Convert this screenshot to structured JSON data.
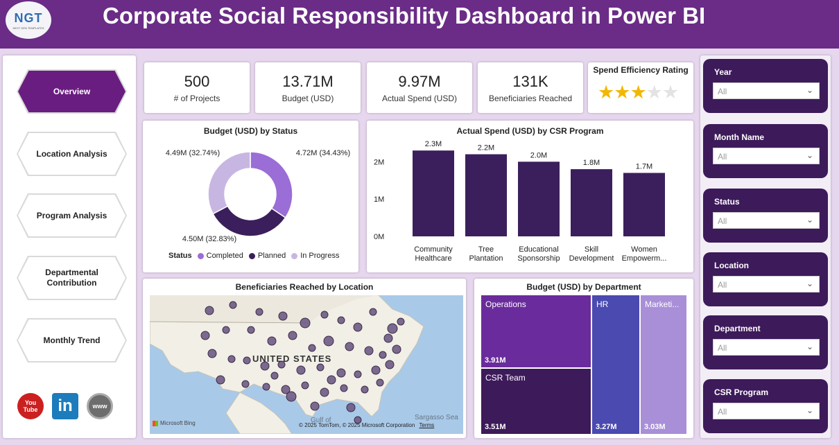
{
  "header": {
    "logo_text": "NGT",
    "logo_sub": "NEXT GEN TEMPLATES",
    "title": "Corporate Social Responsibility Dashboard in Power BI"
  },
  "nav": {
    "items": [
      {
        "label": "Overview",
        "active": true
      },
      {
        "label": "Location Analysis",
        "active": false
      },
      {
        "label": "Program Analysis",
        "active": false
      },
      {
        "label": "Departmental Contribution",
        "active": false
      },
      {
        "label": "Monthly Trend",
        "active": false
      }
    ],
    "social": [
      {
        "icon": "youtube-icon",
        "label": "You Tube",
        "color": "#cc1f1f"
      },
      {
        "icon": "linkedin-icon",
        "label": "in",
        "color": "#1c7cbc"
      },
      {
        "icon": "globe-icon",
        "label": "www",
        "color": "#6d6d6d"
      }
    ]
  },
  "kpis": [
    {
      "value": "500",
      "label": "# of Projects"
    },
    {
      "value": "13.71M",
      "label": "Budget (USD)"
    },
    {
      "value": "9.97M",
      "label": "Actual Spend (USD)"
    },
    {
      "value": "131K",
      "label": "Beneficiaries Reached"
    }
  ],
  "rating": {
    "label": "Spend Efficiency Rating",
    "stars": 3,
    "max": 5
  },
  "donut": {
    "title": "Budget (USD) by Status",
    "legend_title": "Status",
    "slices": [
      {
        "name": "Completed",
        "value": 4.72,
        "label": "4.72M (34.43%)",
        "color": "#9b6dd6"
      },
      {
        "name": "Planned",
        "value": 4.5,
        "label": "4.50M (32.83%)",
        "color": "#3b1f5c"
      },
      {
        "name": "In Progress",
        "value": 4.49,
        "label": "4.49M (32.74%)",
        "color": "#c8b6e2"
      }
    ]
  },
  "bar": {
    "title": "Actual Spend (USD) by CSR Program",
    "yticks": [
      "2M",
      "1M",
      "0M"
    ],
    "ymax": 2.6,
    "bars": [
      {
        "line1": "Community",
        "line2": "Healthcare",
        "value": 2.3,
        "label": "2.3M"
      },
      {
        "line1": "Tree",
        "line2": "Plantation",
        "value": 2.2,
        "label": "2.2M"
      },
      {
        "line1": "Educational",
        "line2": "Sponsorship",
        "value": 2.0,
        "label": "2.0M"
      },
      {
        "line1": "Skill",
        "line2": "Development",
        "value": 1.8,
        "label": "1.8M"
      },
      {
        "line1": "Women",
        "line2": "Empowerm...",
        "value": 1.7,
        "label": "1.7M"
      }
    ],
    "color": "#3b1f5c"
  },
  "map": {
    "title": "Beneficiaries Reached by Location",
    "country_label": "UNITED STATES",
    "gulf_label": "Gulf of",
    "sea_label": "Sargasso Sea",
    "attribution": "© 2025 TomTom, © 2025 Microsoft Corporation",
    "terms": "Terms",
    "bing": "Microsoft Bing"
  },
  "treemap": {
    "title": "Budget (USD) by Department",
    "tiles": [
      {
        "name": "Operations",
        "value": "3.91M",
        "color": "#6a2c9c"
      },
      {
        "name": "CSR Team",
        "value": "3.51M",
        "color": "#3d1a5a"
      },
      {
        "name": "HR",
        "value": "3.27M",
        "color": "#4a4ab0"
      },
      {
        "name": "Marketi...",
        "value": "3.03M",
        "color": "#a88fd8"
      }
    ]
  },
  "filters": [
    {
      "label": "Year",
      "value": "All"
    },
    {
      "label": "Month Name",
      "value": "All"
    },
    {
      "label": "Status",
      "value": "All"
    },
    {
      "label": "Location",
      "value": "All"
    },
    {
      "label": "Department",
      "value": "All"
    },
    {
      "label": "CSR Program",
      "value": "All"
    }
  ],
  "chart_data": [
    {
      "type": "pie",
      "title": "Budget (USD) by Status",
      "categories": [
        "Completed",
        "Planned",
        "In Progress"
      ],
      "values": [
        4.72,
        4.5,
        4.49
      ],
      "legend": "bottom"
    },
    {
      "type": "bar",
      "title": "Actual Spend (USD) by CSR Program",
      "categories": [
        "Community Healthcare",
        "Tree Plantation",
        "Educational Sponsorship",
        "Skill Development",
        "Women Empowerm..."
      ],
      "values": [
        2.3,
        2.2,
        2.0,
        1.8,
        1.7
      ],
      "ylim": [
        0,
        2.6
      ]
    },
    {
      "type": "table",
      "title": "Budget (USD) by Department",
      "categories": [
        "Operations",
        "CSR Team",
        "HR",
        "Marketi..."
      ],
      "values": [
        3.91,
        3.51,
        3.27,
        3.03
      ]
    }
  ]
}
